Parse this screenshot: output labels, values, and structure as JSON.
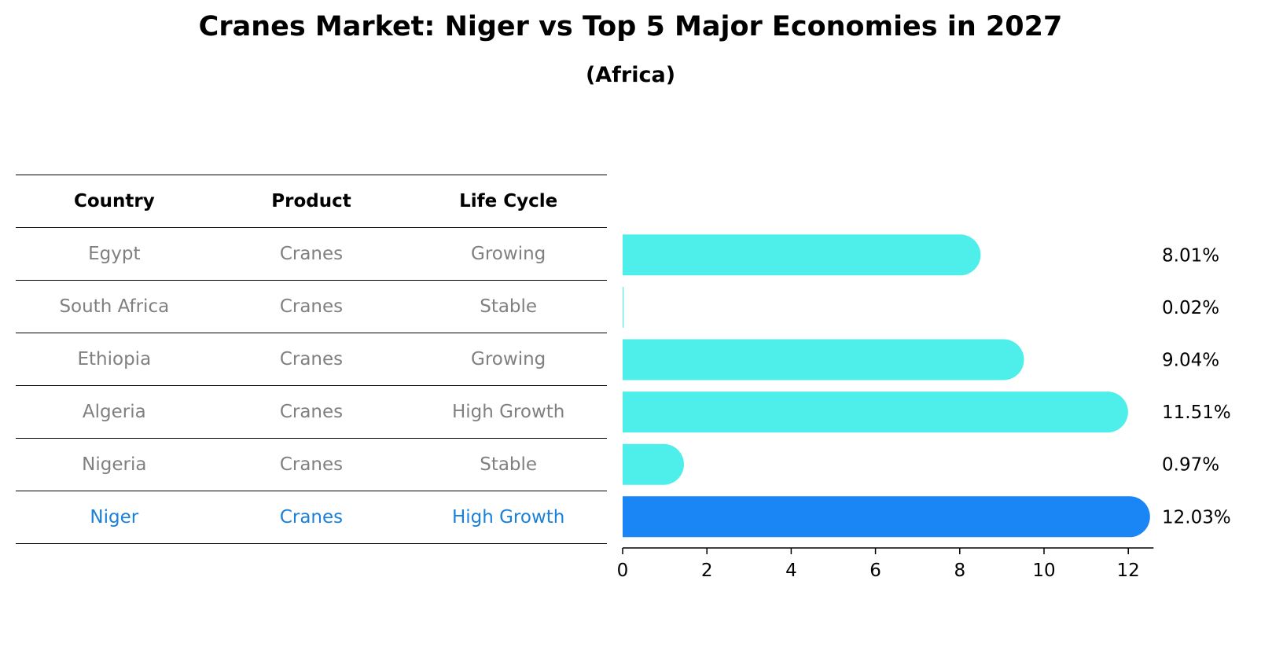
{
  "title": "Cranes Market: Niger vs Top 5 Major Economies in 2027",
  "subtitle": "(Africa)",
  "table": {
    "headers": [
      "Country",
      "Product",
      "Life Cycle"
    ],
    "rows": [
      [
        "Egypt",
        "Cranes",
        "Growing"
      ],
      [
        "South Africa",
        "Cranes",
        "Stable"
      ],
      [
        "Ethiopia",
        "Cranes",
        "Growing"
      ],
      [
        "Algeria",
        "Cranes",
        "High Growth"
      ],
      [
        "Nigeria",
        "Cranes",
        "Stable"
      ],
      [
        "Niger",
        "Cranes",
        "High Growth"
      ]
    ],
    "highlight_row": "Niger"
  },
  "colors": {
    "bar": "#4eeeea",
    "highlight_bar": "#1a85f5",
    "muted_text": "#808080",
    "highlight_text": "#1a80d9"
  },
  "chart_data": {
    "type": "bar",
    "orientation": "horizontal",
    "categories": [
      "Egypt",
      "South Africa",
      "Ethiopia",
      "Algeria",
      "Nigeria",
      "Niger"
    ],
    "values": [
      8.01,
      0.02,
      9.04,
      11.51,
      0.97,
      12.03
    ],
    "labels": [
      "8.01%",
      "0.02%",
      "9.04%",
      "11.51%",
      "0.97%",
      "12.03%"
    ],
    "highlight": "Niger",
    "xlim": [
      0,
      12.6
    ],
    "xticks": [
      0,
      2,
      4,
      6,
      8,
      10,
      12
    ],
    "xlabel": "",
    "ylabel": ""
  }
}
